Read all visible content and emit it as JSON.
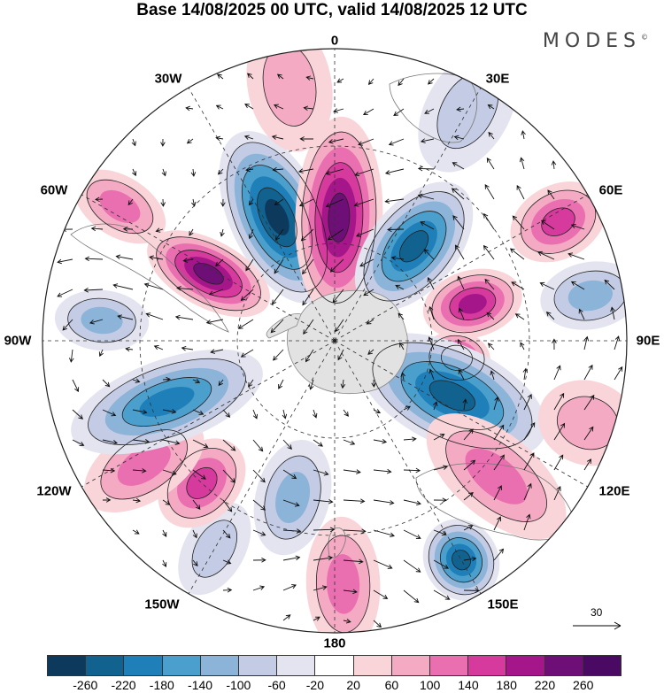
{
  "title": "Base 14/08/2025 00 UTC, valid 14/08/2025 12 UTC",
  "brand": "MODES",
  "brand_mark": "©",
  "longitude_labels": {
    "lon_0": "0",
    "lon_30e": "30E",
    "lon_60e": "60E",
    "lon_90e": "90E",
    "lon_120e": "120E",
    "lon_150e": "150E",
    "lon_180": "180",
    "lon_150w": "150W",
    "lon_120w": "120W",
    "lon_90w": "90W",
    "lon_60w": "60W",
    "lon_30w": "30W"
  },
  "vector_scale": {
    "label": "30"
  },
  "colorbar": {
    "ticks": [
      "-260",
      "-220",
      "-180",
      "-140",
      "-100",
      "-60",
      "-20",
      "20",
      "60",
      "100",
      "140",
      "180",
      "220",
      "260"
    ],
    "colors": [
      "#0d3a5c",
      "#12628f",
      "#1f7fb8",
      "#4a9fcc",
      "#8cb3d8",
      "#c3cce4",
      "#e4e4f0",
      "#ffffff",
      "#f9d5da",
      "#f4aac3",
      "#ea6fb0",
      "#d63a9c",
      "#a5168a",
      "#6e0f78",
      "#4a0a63"
    ]
  },
  "map": {
    "ocean_color": "#ffffff",
    "antarctica_color": "#e2e2e2",
    "anomalies": [
      {
        "lon": -25,
        "colat": 42,
        "value": -260,
        "sx": 28,
        "sy": 55
      },
      {
        "lon": 2,
        "colat": 38,
        "value": 240,
        "sx": 26,
        "sy": 60
      },
      {
        "lon": 40,
        "colat": 38,
        "value": -250,
        "sx": 26,
        "sy": 45
      },
      {
        "lon": 75,
        "colat": 44,
        "value": 200,
        "sx": 20,
        "sy": 30
      },
      {
        "lon": 98,
        "colat": 38,
        "value": 180,
        "sx": 16,
        "sy": 20
      },
      {
        "lon": 115,
        "colat": 40,
        "value": -240,
        "sx": 30,
        "sy": 60
      },
      {
        "lon": 130,
        "colat": 65,
        "value": 100,
        "sx": 25,
        "sy": 50
      },
      {
        "lon": 150,
        "colat": 78,
        "value": -230,
        "sx": 22,
        "sy": 25
      },
      {
        "lon": 178,
        "colat": 75,
        "value": 100,
        "sx": 22,
        "sy": 40
      },
      {
        "lon": -165,
        "colat": 50,
        "value": -110,
        "sx": 22,
        "sy": 35
      },
      {
        "lon": -150,
        "colat": 74,
        "value": -80,
        "sx": 18,
        "sy": 30
      },
      {
        "lon": -137,
        "colat": 60,
        "value": 150,
        "sx": 22,
        "sy": 30
      },
      {
        "lon": -123,
        "colat": 70,
        "value": 130,
        "sx": 22,
        "sy": 40
      },
      {
        "lon": -110,
        "colat": 55,
        "value": -190,
        "sx": 25,
        "sy": 60
      },
      {
        "lon": -62,
        "colat": 44,
        "value": 240,
        "sx": 20,
        "sy": 40
      },
      {
        "lon": -85,
        "colat": 72,
        "value": -110,
        "sx": 18,
        "sy": 28
      },
      {
        "lon": -58,
        "colat": 78,
        "value": 100,
        "sx": 18,
        "sy": 30
      },
      {
        "lon": 62,
        "colat": 78,
        "value": 140,
        "sx": 22,
        "sy": 30
      },
      {
        "lon": 80,
        "colat": 80,
        "value": -110,
        "sx": 20,
        "sy": 30
      },
      {
        "lon": 30,
        "colat": 82,
        "value": -60,
        "sx": 25,
        "sy": 40
      },
      {
        "lon": -10,
        "colat": 80,
        "value": 60,
        "sx": 25,
        "sy": 40
      },
      {
        "lon": 108,
        "colat": 82,
        "value": 60,
        "sx": 25,
        "sy": 30
      }
    ]
  }
}
